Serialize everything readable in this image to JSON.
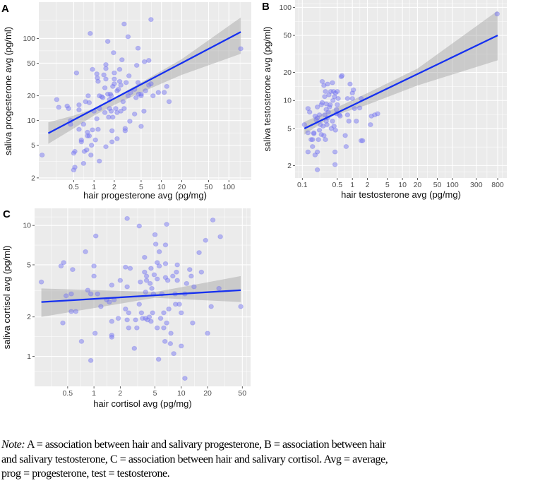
{
  "chart_data": [
    {
      "type": "scatter",
      "panel_label": "A",
      "xlabel": "hair progesterone avg (pg/mg)",
      "ylabel": "saliva progesterone avg (pg/ml)",
      "xscale": "log10",
      "yscale": "log10",
      "xlim": [
        0.152,
        215
      ],
      "ylim": [
        1.88,
        277
      ],
      "xticks": [
        0.5,
        1,
        2,
        5,
        10,
        20,
        50,
        100
      ],
      "xtick_labels": [
        "0.5",
        "1",
        "2",
        "5",
        "10",
        "20",
        "50",
        "100"
      ],
      "yticks": [
        2,
        5,
        10,
        20,
        50,
        100
      ],
      "ytick_labels": [
        "2",
        "5",
        "10",
        "20",
        "50",
        "100"
      ],
      "grid": true,
      "points": [
        [
          0.17,
          3.8
        ],
        [
          0.28,
          18
        ],
        [
          0.3,
          14.5
        ],
        [
          0.4,
          15
        ],
        [
          0.42,
          14
        ],
        [
          0.45,
          10
        ],
        [
          0.45,
          9
        ],
        [
          0.5,
          4
        ],
        [
          0.52,
          4.2
        ],
        [
          0.5,
          2.5
        ],
        [
          0.52,
          2.7
        ],
        [
          0.55,
          38
        ],
        [
          0.6,
          7.8
        ],
        [
          0.6,
          15.5
        ],
        [
          0.6,
          13.5
        ],
        [
          0.65,
          5.8
        ],
        [
          0.65,
          5.5
        ],
        [
          0.7,
          9
        ],
        [
          0.7,
          3
        ],
        [
          0.72,
          4.2
        ],
        [
          0.75,
          17
        ],
        [
          0.78,
          4.4
        ],
        [
          0.8,
          7.2
        ],
        [
          0.8,
          6.5
        ],
        [
          0.82,
          20
        ],
        [
          0.85,
          16.5
        ],
        [
          0.85,
          6.5
        ],
        [
          0.88,
          115
        ],
        [
          0.9,
          3.8
        ],
        [
          0.92,
          5
        ],
        [
          0.95,
          42
        ],
        [
          0.95,
          7.7
        ],
        [
          1,
          13
        ],
        [
          1.05,
          5.8
        ],
        [
          1.1,
          10.5
        ],
        [
          1.1,
          37
        ],
        [
          1.12,
          33
        ],
        [
          1.15,
          30
        ],
        [
          1.15,
          7.8
        ],
        [
          1.2,
          20
        ],
        [
          1.2,
          14
        ],
        [
          1.2,
          3.2
        ],
        [
          1.3,
          19.5
        ],
        [
          1.35,
          19
        ],
        [
          1.4,
          36
        ],
        [
          1.45,
          12.5
        ],
        [
          1.45,
          25
        ],
        [
          1.5,
          48
        ],
        [
          1.5,
          43
        ],
        [
          1.5,
          32
        ],
        [
          1.5,
          4.8
        ],
        [
          1.6,
          92
        ],
        [
          1.6,
          21
        ],
        [
          1.65,
          11
        ],
        [
          1.7,
          18
        ],
        [
          1.7,
          14
        ],
        [
          1.75,
          21
        ],
        [
          1.8,
          20
        ],
        [
          1.8,
          13
        ],
        [
          1.85,
          7.5
        ],
        [
          1.85,
          5.5
        ],
        [
          1.9,
          26
        ],
        [
          1.9,
          11
        ],
        [
          1.95,
          67
        ],
        [
          2,
          38
        ],
        [
          2,
          32
        ],
        [
          2,
          28
        ],
        [
          2.1,
          14
        ],
        [
          2.2,
          12.5
        ],
        [
          2.2,
          23
        ],
        [
          2.2,
          6
        ],
        [
          2.3,
          24
        ],
        [
          2.4,
          42
        ],
        [
          2.4,
          30
        ],
        [
          2.5,
          13
        ],
        [
          2.5,
          27
        ],
        [
          2.6,
          55
        ],
        [
          2.7,
          17
        ],
        [
          2.8,
          150
        ],
        [
          2.8,
          14
        ],
        [
          2.9,
          8
        ],
        [
          2.9,
          7.5
        ],
        [
          3,
          29
        ],
        [
          3.2,
          105
        ],
        [
          3.2,
          20
        ],
        [
          3.3,
          35
        ],
        [
          3.4,
          9.8
        ],
        [
          3.5,
          22
        ],
        [
          4,
          24
        ],
        [
          4,
          12
        ],
        [
          4.2,
          19
        ],
        [
          4.3,
          47
        ],
        [
          4.5,
          29
        ],
        [
          4.5,
          76
        ],
        [
          4.6,
          21
        ],
        [
          5,
          20
        ],
        [
          5,
          8.5
        ],
        [
          5,
          21
        ],
        [
          5.5,
          13
        ],
        [
          5.6,
          52
        ],
        [
          5.8,
          23
        ],
        [
          6.5,
          27
        ],
        [
          6.5,
          54
        ],
        [
          7,
          170
        ],
        [
          7,
          28
        ],
        [
          7.5,
          20
        ],
        [
          9,
          22
        ],
        [
          11,
          22
        ],
        [
          12,
          26
        ],
        [
          13,
          17
        ],
        [
          150,
          75
        ]
      ],
      "fit_line": [
        [
          0.21,
          7
        ],
        [
          150,
          120
        ]
      ],
      "ci_band": {
        "x": [
          0.21,
          0.5,
          1,
          2,
          5,
          20,
          150
        ],
        "lo": [
          5.2,
          8,
          11.5,
          15.5,
          22,
          36,
          65
        ],
        "hi": [
          9.5,
          11.5,
          14,
          19,
          29,
          56,
          180
        ]
      }
    },
    {
      "type": "scatter",
      "panel_label": "B",
      "xlabel": "hair testosterone avg (pg/mg)",
      "ylabel": "saliva testosterone avg (pg/ml)",
      "xscale": "log10",
      "yscale": "log10",
      "xlim": [
        0.0716,
        1219
      ],
      "ylim": [
        1.47,
        120
      ],
      "xticks": [
        0.1,
        0.5,
        1,
        2,
        5,
        10,
        20,
        50,
        100,
        300,
        800
      ],
      "xtick_labels": [
        "0.1",
        "0.5",
        "1",
        "2",
        "5",
        "10",
        "20",
        "50",
        "100",
        "300",
        "800"
      ],
      "yticks": [
        2,
        5,
        10,
        20,
        50,
        100
      ],
      "ytick_labels": [
        "2",
        "5",
        "10",
        "20",
        "50",
        "100"
      ],
      "grid": true,
      "points": [
        [
          0.11,
          5.5
        ],
        [
          0.13,
          8.2
        ],
        [
          0.13,
          2.8
        ],
        [
          0.13,
          4.5
        ],
        [
          0.14,
          7.5
        ],
        [
          0.15,
          3.8
        ],
        [
          0.16,
          3.2
        ],
        [
          0.16,
          3.8
        ],
        [
          0.17,
          4.4
        ],
        [
          0.17,
          4.5
        ],
        [
          0.18,
          2.6
        ],
        [
          0.18,
          6.8
        ],
        [
          0.19,
          6.2
        ],
        [
          0.2,
          6.5
        ],
        [
          0.2,
          8.5
        ],
        [
          0.2,
          1.8
        ],
        [
          0.2,
          2.8
        ],
        [
          0.21,
          3.8
        ],
        [
          0.22,
          4.8
        ],
        [
          0.22,
          7
        ],
        [
          0.23,
          5.5
        ],
        [
          0.24,
          4.3
        ],
        [
          0.24,
          9
        ],
        [
          0.25,
          9.5
        ],
        [
          0.25,
          16
        ],
        [
          0.26,
          5.3
        ],
        [
          0.27,
          4.2
        ],
        [
          0.27,
          14.5
        ],
        [
          0.28,
          7
        ],
        [
          0.28,
          11
        ],
        [
          0.29,
          12.5
        ],
        [
          0.29,
          3.8
        ],
        [
          0.3,
          8
        ],
        [
          0.3,
          6
        ],
        [
          0.3,
          9.2
        ],
        [
          0.31,
          5.5
        ],
        [
          0.32,
          15
        ],
        [
          0.32,
          6.5
        ],
        [
          0.33,
          7.5
        ],
        [
          0.34,
          11.5
        ],
        [
          0.35,
          8.5
        ],
        [
          0.36,
          9
        ],
        [
          0.37,
          12.5
        ],
        [
          0.38,
          5
        ],
        [
          0.4,
          15.5
        ],
        [
          0.4,
          6
        ],
        [
          0.41,
          10
        ],
        [
          0.42,
          12.5
        ],
        [
          0.43,
          5.3
        ],
        [
          0.44,
          11
        ],
        [
          0.45,
          2.8
        ],
        [
          0.45,
          2.05
        ],
        [
          0.46,
          4.8
        ],
        [
          0.46,
          12
        ],
        [
          0.48,
          8
        ],
        [
          0.48,
          7.2
        ],
        [
          0.5,
          12.5
        ],
        [
          0.5,
          9
        ],
        [
          0.52,
          10.5
        ],
        [
          0.55,
          7
        ],
        [
          0.57,
          6.8
        ],
        [
          0.6,
          18
        ],
        [
          0.62,
          18.5
        ],
        [
          0.72,
          4.2
        ],
        [
          0.75,
          3.2
        ],
        [
          0.8,
          7
        ],
        [
          0.8,
          10.5
        ],
        [
          0.85,
          6
        ],
        [
          0.9,
          15
        ],
        [
          1,
          12
        ],
        [
          1,
          10.5
        ],
        [
          1.05,
          13
        ],
        [
          1.1,
          8.2
        ],
        [
          1.2,
          6
        ],
        [
          1.4,
          8.3
        ],
        [
          1.5,
          3.7
        ],
        [
          1.5,
          10.5
        ],
        [
          1.6,
          3.7
        ],
        [
          2.3,
          5.5
        ],
        [
          2.4,
          6.8
        ],
        [
          2.8,
          7
        ],
        [
          3.2,
          7.2
        ],
        [
          780,
          85
        ]
      ],
      "fit_line": [
        [
          0.11,
          5
        ],
        [
          800,
          50
        ]
      ],
      "ci_band": {
        "x": [
          0.11,
          0.4,
          2,
          20,
          800
        ],
        "lo": [
          4.3,
          6.8,
          9,
          14.5,
          27
        ],
        "hi": [
          5.9,
          8,
          12,
          22,
          92
        ]
      }
    },
    {
      "type": "scatter",
      "panel_label": "C",
      "xlabel": "hair cortisol avg (pg/mg)",
      "ylabel": "saliva cortisol avg (pg/ml)",
      "xscale": "log10",
      "yscale": "log10",
      "xlim": [
        0.209,
        62.2
      ],
      "ylim": [
        0.59,
        13.5
      ],
      "xticks": [
        0.5,
        1,
        2,
        5,
        10,
        20,
        50
      ],
      "xtick_labels": [
        "0.5",
        "1",
        "2",
        "5",
        "10",
        "20",
        "50"
      ],
      "yticks": [
        1,
        2,
        5,
        10
      ],
      "ytick_labels": [
        "1",
        "2",
        "5",
        "10"
      ],
      "grid": true,
      "points": [
        [
          0.25,
          3.7
        ],
        [
          0.42,
          4.9
        ],
        [
          0.44,
          1.8
        ],
        [
          0.45,
          5.2
        ],
        [
          0.48,
          2.9
        ],
        [
          0.55,
          3
        ],
        [
          0.55,
          2.2
        ],
        [
          0.57,
          4.6
        ],
        [
          0.62,
          2.2
        ],
        [
          0.72,
          1.3
        ],
        [
          0.8,
          6.3
        ],
        [
          0.85,
          3.2
        ],
        [
          0.92,
          0.93
        ],
        [
          0.92,
          3
        ],
        [
          1,
          4.9
        ],
        [
          1,
          4.1
        ],
        [
          1.03,
          1.5
        ],
        [
          1.05,
          8.3
        ],
        [
          1.1,
          3
        ],
        [
          1.2,
          2.4
        ],
        [
          1.4,
          2.7
        ],
        [
          1.5,
          2.6
        ],
        [
          1.6,
          3.5
        ],
        [
          1.6,
          1.85
        ],
        [
          1.6,
          1.45
        ],
        [
          1.6,
          1.4
        ],
        [
          1.7,
          2.7
        ],
        [
          1.9,
          1.95
        ],
        [
          2,
          3.8
        ],
        [
          2.3,
          4.8
        ],
        [
          2.3,
          2.3
        ],
        [
          2.4,
          11.3
        ],
        [
          2.4,
          3.4
        ],
        [
          2.4,
          1.9
        ],
        [
          2.5,
          2.15
        ],
        [
          2.5,
          1.65
        ],
        [
          2.6,
          4.7
        ],
        [
          2.9,
          1.15
        ],
        [
          3,
          1.9
        ],
        [
          3.1,
          1.65
        ],
        [
          3.3,
          9.9
        ],
        [
          3.3,
          2.5
        ],
        [
          3.4,
          3.7
        ],
        [
          3.5,
          2.15
        ],
        [
          3.6,
          1.95
        ],
        [
          3.8,
          5.7
        ],
        [
          3.8,
          4.4
        ],
        [
          3.9,
          3.1
        ],
        [
          3.9,
          1.95
        ],
        [
          4,
          4.1
        ],
        [
          4,
          3.8
        ],
        [
          4.1,
          1.9
        ],
        [
          4.3,
          2
        ],
        [
          4.4,
          3.6
        ],
        [
          4.5,
          4.7
        ],
        [
          4.5,
          1.85
        ],
        [
          4.6,
          3.3
        ],
        [
          4.7,
          2.15
        ],
        [
          4.8,
          3
        ],
        [
          4.9,
          4.2
        ],
        [
          5,
          8.5
        ],
        [
          5.1,
          7.2
        ],
        [
          5.3,
          5.2
        ],
        [
          5.3,
          3.9
        ],
        [
          5.3,
          1.65
        ],
        [
          5.5,
          0.95
        ],
        [
          5.6,
          6.3
        ],
        [
          5.6,
          4.9
        ],
        [
          5.8,
          1.95
        ],
        [
          6,
          3
        ],
        [
          6.3,
          2.15
        ],
        [
          6.3,
          1.65
        ],
        [
          6.5,
          1.3
        ],
        [
          6.6,
          7.1
        ],
        [
          6.6,
          5.1
        ],
        [
          6.6,
          4
        ],
        [
          6.8,
          10.2
        ],
        [
          6.8,
          1.8
        ],
        [
          7,
          3.8
        ],
        [
          7.2,
          2.3
        ],
        [
          7.5,
          1.25
        ],
        [
          7.6,
          1.5
        ],
        [
          8,
          4.1
        ],
        [
          8.2,
          1.05
        ],
        [
          8.5,
          3
        ],
        [
          8.6,
          2.5
        ],
        [
          8.8,
          4.4
        ],
        [
          9,
          5
        ],
        [
          9,
          3.8
        ],
        [
          9.5,
          2.5
        ],
        [
          10,
          2.15
        ],
        [
          10,
          1.2
        ],
        [
          11,
          3
        ],
        [
          11,
          0.68
        ],
        [
          11.5,
          3.6
        ],
        [
          12.5,
          4.6
        ],
        [
          13,
          4.1
        ],
        [
          13.5,
          1.8
        ],
        [
          14,
          3.4
        ],
        [
          16,
          6.2
        ],
        [
          17,
          4.4
        ],
        [
          19,
          7.7
        ],
        [
          20,
          1.5
        ],
        [
          22,
          2.4
        ],
        [
          23,
          11
        ],
        [
          27,
          3.3
        ],
        [
          28,
          8.2
        ],
        [
          48,
          2.4
        ]
      ],
      "fit_line": [
        [
          0.25,
          2.6
        ],
        [
          48,
          3.2
        ]
      ],
      "ci_band": {
        "x": [
          0.25,
          5,
          48
        ],
        "lo": [
          2,
          2.8,
          2.6
        ],
        "hi": [
          3.3,
          3.1,
          4.1
        ]
      }
    }
  ],
  "colors": {
    "panel_bg": "#ebebeb",
    "grid": "#ffffff",
    "point": "#7b7bf2",
    "line": "#1530f0",
    "band": "#c2c2c2",
    "tick_text": "#4d4d4d"
  },
  "note": {
    "label": "Note:",
    "lines": [
      " A = association between hair and salivary progesterone, B = association between hair",
      "and salivary testosterone, C = association between hair and salivary cortisol. Avg = average,",
      "prog = progesterone, test = testosterone."
    ]
  }
}
